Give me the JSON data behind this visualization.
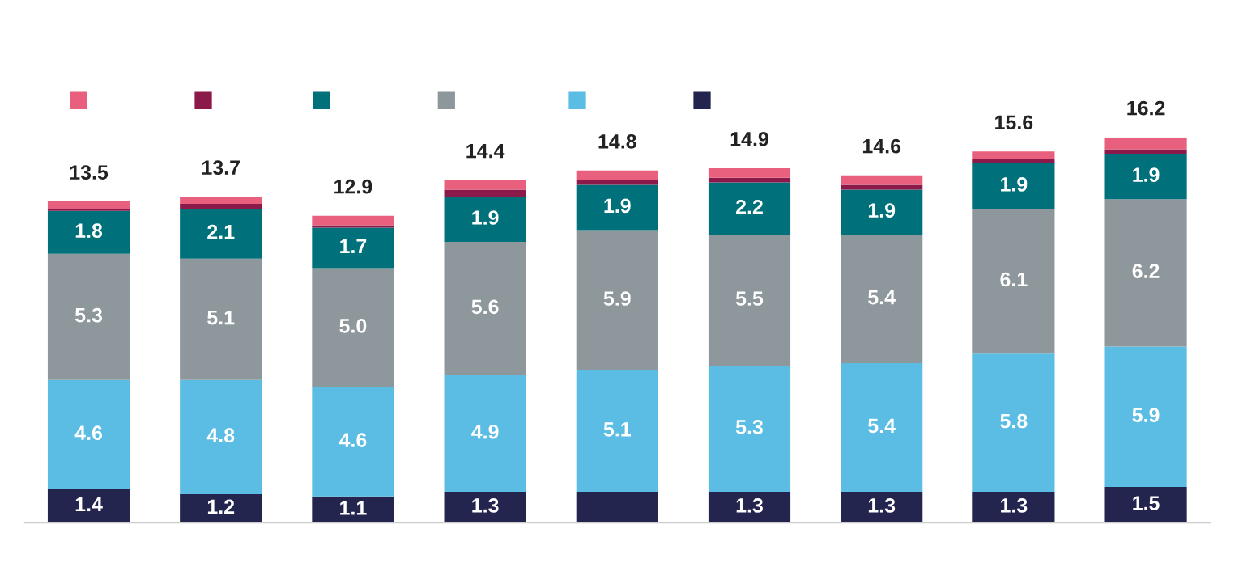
{
  "chart_data": {
    "type": "bar",
    "stacked": true,
    "categories": [
      null,
      null,
      null,
      null,
      null,
      null,
      null,
      null,
      null
    ],
    "series": [
      {
        "color": "#23254f",
        "values": [
          1.4,
          1.2,
          1.1,
          1.3,
          1.3,
          1.3,
          1.3,
          1.3,
          1.5
        ],
        "value_labels": [
          "1.4",
          "1.2",
          "1.1",
          "1.3",
          null,
          "1.3",
          "1.3",
          "1.3",
          "1.5"
        ]
      },
      {
        "color": "#5bbde3",
        "values": [
          4.6,
          4.8,
          4.6,
          4.9,
          5.1,
          5.3,
          5.4,
          5.8,
          5.9
        ],
        "value_labels": [
          "4.6",
          "4.8",
          "4.6",
          "4.9",
          "5.1",
          "5.3",
          "5.4",
          "5.8",
          "5.9"
        ]
      },
      {
        "color": "#8e979c",
        "values": [
          5.3,
          5.1,
          5.0,
          5.6,
          5.9,
          5.5,
          5.4,
          6.1,
          6.2
        ],
        "value_labels": [
          "5.3",
          "5.1",
          "5.0",
          "5.6",
          "5.9",
          "5.5",
          "5.4",
          "6.1",
          "6.2"
        ]
      },
      {
        "color": "#00707a",
        "values": [
          1.8,
          2.1,
          1.7,
          1.9,
          1.9,
          2.2,
          1.9,
          1.9,
          1.9
        ],
        "value_labels": [
          "1.8",
          "2.1",
          "1.7",
          "1.9",
          "1.9",
          "2.2",
          "1.9",
          "1.9",
          "1.9"
        ]
      },
      {
        "color": "#8b1a4a",
        "values": [
          0.1,
          0.2,
          0.1,
          0.3,
          0.2,
          0.2,
          0.2,
          0.2,
          0.2
        ]
      },
      {
        "color": "#e8607e",
        "values": [
          0.3,
          0.3,
          0.4,
          0.4,
          0.4,
          0.4,
          0.4,
          0.3,
          0.5
        ]
      }
    ],
    "totals": [
      "13.5",
      "13.7",
      "12.9",
      "14.4",
      "14.8",
      "14.9",
      "14.6",
      "15.6",
      "16.2"
    ],
    "grid": false
  }
}
